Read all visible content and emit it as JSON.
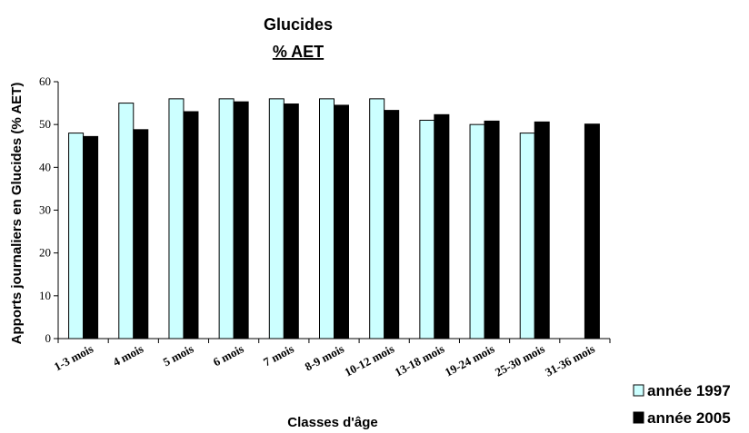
{
  "chart_data": {
    "type": "bar",
    "title": "Glucides",
    "subtitle": "% AET",
    "xlabel": "Classes d'âge",
    "ylabel": "Apports journaliers en Glucides  (% AET)",
    "ylim": [
      0,
      60
    ],
    "yticks": [
      0,
      10,
      20,
      30,
      40,
      50,
      60
    ],
    "grid": false,
    "legend": "bottom-right",
    "categories": [
      "1-3 mois",
      "4 mois",
      "5 mois",
      "6 mois",
      "7 mois",
      "8-9 mois",
      "10-12 mois",
      "13-18 mois",
      "19-24 mois",
      "25-30 mois",
      "31-36 mois"
    ],
    "series": [
      {
        "name": "année 1997",
        "color": "#ccffff",
        "values": [
          48,
          55,
          56,
          56,
          56,
          56,
          56,
          51,
          50,
          48,
          null
        ]
      },
      {
        "name": "année 2005",
        "color": "#000000",
        "values": [
          47.2,
          48.8,
          53,
          55.3,
          54.8,
          54.5,
          53.3,
          52.3,
          50.8,
          50.6,
          50.1
        ]
      }
    ]
  }
}
